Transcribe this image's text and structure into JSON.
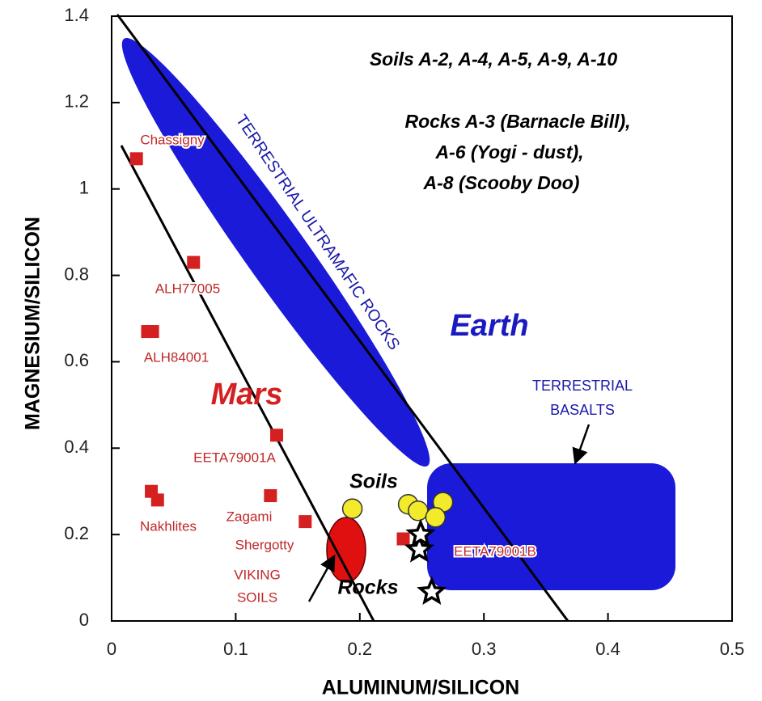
{
  "chart_data": {
    "type": "scatter",
    "xlabel": "ALUMINUM/SILICON",
    "ylabel": "MAGNESIUM/SILICON",
    "xlim": [
      0,
      0.5
    ],
    "ylim": [
      0,
      1.4
    ],
    "xticks": [
      0,
      0.1,
      0.2,
      0.3,
      0.4,
      0.5
    ],
    "yticks": [
      0,
      0.2,
      0.4,
      0.6,
      0.8,
      1,
      1.2,
      1.4
    ],
    "title_lines": [
      "Soils A-2, A-4, A-5, A-9, A-10",
      "Rocks A-3 (Barnacle Bill),",
      "A-6 (Yogi - dust),",
      "A-8 (Scooby Doo)"
    ],
    "annotations": [
      "TERRESTRIAL ULTRAMAFIC ROCKS",
      "Earth",
      "TERRESTRIAL",
      "BASALTS",
      "VIKING",
      "SOILS"
    ],
    "point_labels": [
      "Chassigny",
      "ALH77005",
      "ALH84001",
      "EETA79001A",
      "Nakhlites",
      "Zagami",
      "Shergotty",
      "EETA79001B"
    ],
    "series": [
      {
        "name": "Mars",
        "color": "#d42020",
        "marker": "square",
        "x": [
          0.02,
          0.066,
          0.029,
          0.033,
          0.133,
          0.032,
          0.037,
          0.128,
          0.156,
          0.235
        ],
        "values": [
          1.07,
          0.83,
          0.67,
          0.67,
          0.43,
          0.3,
          0.28,
          0.29,
          0.23,
          0.19
        ]
      },
      {
        "name": "Soils",
        "color": "#f2ea2a",
        "marker": "circle",
        "x": [
          0.194,
          0.239,
          0.247,
          0.267,
          0.261
        ],
        "values": [
          0.26,
          0.27,
          0.255,
          0.275,
          0.24
        ]
      },
      {
        "name": "Rocks",
        "color": "#ffffff",
        "marker": "star",
        "x": [
          0.248,
          0.249,
          0.258
        ],
        "values": [
          0.165,
          0.2,
          0.067
        ]
      }
    ]
  }
}
